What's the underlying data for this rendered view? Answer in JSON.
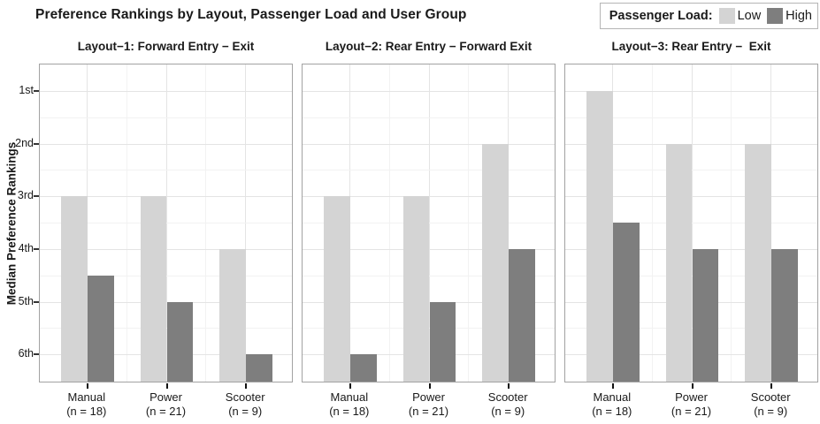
{
  "title": "Preference Rankings by Layout, Passenger Load and User Group",
  "legend": {
    "label": "Passenger Load:",
    "entries": [
      {
        "name": "Low"
      },
      {
        "name": "High"
      }
    ]
  },
  "colors": {
    "low_fill": "#d4d4d4",
    "high_fill": "#7e7e7e",
    "panel_border": "#a2a2a2",
    "grid_major": "#e4e4e4",
    "grid_minor": "#f2f2f2",
    "legend_border": "#b5b5b5",
    "text": "#1a1a1a"
  },
  "chart_data": {
    "type": "bar",
    "title": "Preference Rankings by Layout, Passenger Load and User Group",
    "ylabel": "Median Preference Rankings",
    "xlabel": "",
    "y_ticks": [
      "1st",
      "2nd",
      "3rd",
      "4th",
      "5th",
      "6th"
    ],
    "y_axis": {
      "best": 1,
      "worst": 6,
      "range": [
        0.5,
        6.5
      ],
      "inverted": true,
      "note": "rank 1 at top; bars rise from bottom (worst) toward best rank"
    },
    "grid": true,
    "legend_position": "top-right",
    "series_names": [
      "Low",
      "High"
    ],
    "categories": [
      {
        "label": "Manual",
        "sub": "(n = 18)"
      },
      {
        "label": "Power",
        "sub": "(n = 21)"
      },
      {
        "label": "Scooter",
        "sub": "(n = 9)"
      }
    ],
    "panels": [
      {
        "title": "Layout−1: Forward Entry − Exit",
        "series": [
          {
            "name": "Low",
            "values": [
              3,
              3,
              4
            ]
          },
          {
            "name": "High",
            "values": [
              4.5,
              5,
              6
            ]
          }
        ]
      },
      {
        "title": "Layout−2: Rear Entry − Forward Exit",
        "series": [
          {
            "name": "Low",
            "values": [
              3,
              3,
              2
            ]
          },
          {
            "name": "High",
            "values": [
              6,
              5,
              4
            ]
          }
        ]
      },
      {
        "title": "Layout−3: Rear Entry −  Exit",
        "series": [
          {
            "name": "Low",
            "values": [
              1,
              2,
              2
            ]
          },
          {
            "name": "High",
            "values": [
              3.5,
              4,
              4
            ]
          }
        ]
      }
    ]
  }
}
